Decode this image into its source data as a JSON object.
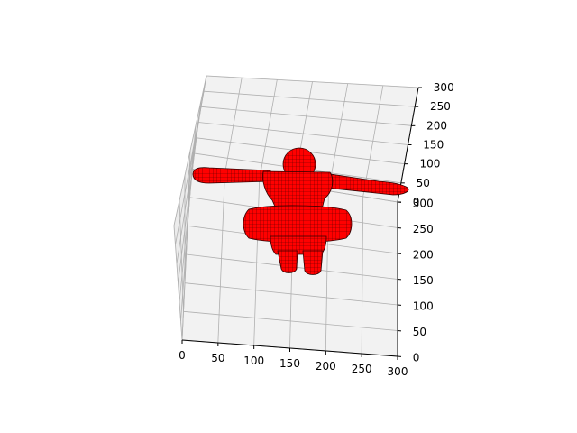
{
  "chart_data": {
    "type": "scatter3d",
    "title": "",
    "xlabel": "",
    "ylabel": "",
    "zlabel": "",
    "xlim": [
      0,
      300
    ],
    "ylim": [
      0,
      300
    ],
    "zlim": [
      0,
      300
    ],
    "x_ticks": [
      "0",
      "50",
      "100",
      "150",
      "200",
      "250",
      "300"
    ],
    "y_ticks": [
      "0",
      "50",
      "100",
      "150",
      "200",
      "250",
      "300"
    ],
    "z_ticks": [
      "0",
      "50",
      "100",
      "150",
      "200",
      "250",
      "300"
    ],
    "grid": true,
    "pane_color": "#f2f2f2",
    "grid_color": "#b0b0b0",
    "marker_color": "#ff0000",
    "marker_edge_color": "#000000",
    "subject": "voxelized humanoid figure in T-pose with a ring around the waist"
  }
}
